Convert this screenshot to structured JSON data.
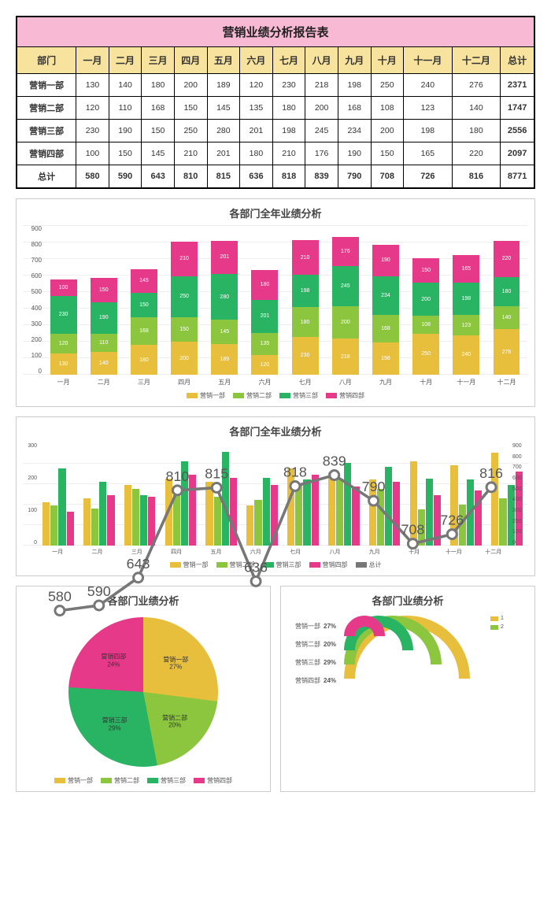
{
  "table": {
    "title": "营销业绩分析报告表",
    "dept_header": "部门",
    "months": [
      "一月",
      "二月",
      "三月",
      "四月",
      "五月",
      "六月",
      "七月",
      "八月",
      "九月",
      "十月",
      "十一月",
      "十二月"
    ],
    "total_col_header": "总计",
    "rows": [
      {
        "dept": "营销一部",
        "vals": [
          130,
          140,
          180,
          200,
          189,
          120,
          230,
          218,
          198,
          250,
          240,
          276
        ],
        "total": 2371
      },
      {
        "dept": "营销二部",
        "vals": [
          120,
          110,
          168,
          150,
          145,
          135,
          180,
          200,
          168,
          108,
          123,
          140
        ],
        "total": 1747
      },
      {
        "dept": "营销三部",
        "vals": [
          230,
          190,
          150,
          250,
          280,
          201,
          198,
          245,
          234,
          200,
          198,
          180
        ],
        "total": 2556
      },
      {
        "dept": "营销四部",
        "vals": [
          100,
          150,
          145,
          210,
          201,
          180,
          210,
          176,
          190,
          150,
          165,
          220
        ],
        "total": 2097
      }
    ],
    "footer_label": "总计",
    "footer_vals": [
      580,
      590,
      643,
      810,
      815,
      636,
      818,
      839,
      790,
      708,
      726,
      816
    ],
    "footer_total": 8771
  },
  "colors": {
    "s1": "#e8be3d",
    "s2": "#8cc63f",
    "s3": "#28b463",
    "s4": "#e6398a",
    "tot_line": "#777777",
    "title_bg": "#f7b9d3",
    "header_bg": "#f7e29e",
    "grid": "#eeeeee",
    "panel_border": "#cccccc"
  },
  "chart_stacked": {
    "type": "stacked-bar",
    "title": "各部门全年业绩分析",
    "categories": [
      "一月",
      "二月",
      "三月",
      "四月",
      "五月",
      "六月",
      "七月",
      "八月",
      "九月",
      "十月",
      "十一月",
      "十二月"
    ],
    "series": [
      {
        "name": "营销一部",
        "color_key": "s1",
        "data": [
          130,
          140,
          180,
          200,
          189,
          120,
          230,
          218,
          198,
          250,
          240,
          276
        ]
      },
      {
        "name": "营销二部",
        "color_key": "s2",
        "data": [
          120,
          110,
          168,
          150,
          145,
          135,
          180,
          200,
          168,
          108,
          123,
          140
        ]
      },
      {
        "name": "营销三部",
        "color_key": "s3",
        "data": [
          230,
          190,
          150,
          250,
          280,
          201,
          198,
          245,
          234,
          200,
          198,
          180
        ]
      },
      {
        "name": "营销四部",
        "color_key": "s4",
        "data": [
          100,
          150,
          145,
          210,
          201,
          180,
          210,
          176,
          190,
          150,
          165,
          220
        ]
      }
    ],
    "ylim": [
      0,
      900
    ],
    "ytick_step": 100,
    "label_fontsize": 7
  },
  "chart_grouped": {
    "type": "grouped-bar-with-line",
    "title": "各部门全年业绩分析",
    "categories": [
      "一月",
      "二月",
      "三月",
      "四月",
      "五月",
      "六月",
      "七月",
      "八月",
      "九月",
      "十月",
      "十一月",
      "十二月"
    ],
    "bar_series": [
      {
        "name": "营销一部",
        "color_key": "s1",
        "data": [
          130,
          140,
          180,
          200,
          189,
          120,
          230,
          218,
          198,
          250,
          240,
          276
        ]
      },
      {
        "name": "营销二部",
        "color_key": "s2",
        "data": [
          120,
          110,
          168,
          150,
          145,
          135,
          180,
          200,
          168,
          108,
          123,
          140
        ]
      },
      {
        "name": "营销三部",
        "color_key": "s3",
        "data": [
          230,
          190,
          150,
          250,
          280,
          201,
          198,
          245,
          234,
          200,
          198,
          180
        ]
      },
      {
        "name": "营销四部",
        "color_key": "s4",
        "data": [
          100,
          150,
          145,
          210,
          201,
          180,
          210,
          176,
          190,
          150,
          165,
          220
        ]
      }
    ],
    "line_series": {
      "name": "总计",
      "color_key": "tot_line",
      "data": [
        580,
        590,
        643,
        810,
        815,
        636,
        818,
        839,
        790,
        708,
        726,
        816
      ]
    },
    "ylim_left": [
      0,
      300
    ],
    "ytick_left_step": 100,
    "ylim_right": [
      0,
      900
    ],
    "ytick_right_step": 100
  },
  "chart_pie": {
    "type": "pie",
    "title": "各部门业绩分析",
    "slices": [
      {
        "name": "营销一部",
        "pct": 27,
        "color_key": "s1"
      },
      {
        "name": "营销二部",
        "pct": 20,
        "color_key": "s2"
      },
      {
        "name": "营销三部",
        "pct": 29,
        "color_key": "s3"
      },
      {
        "name": "营销四部",
        "pct": 24,
        "color_key": "s4"
      }
    ],
    "legend": [
      "营销一部",
      "营销二部",
      "营销三部",
      "营销四部"
    ]
  },
  "chart_radial": {
    "type": "radial-bar",
    "title": "各部门业绩分析",
    "items": [
      {
        "name": "营销一部",
        "pct": 27,
        "color_key": "s1"
      },
      {
        "name": "营销二部",
        "pct": 20,
        "color_key": "s2"
      },
      {
        "name": "营销三部",
        "pct": 29,
        "color_key": "s3"
      },
      {
        "name": "营销四部",
        "pct": 24,
        "color_key": "s4"
      }
    ],
    "legend_nums": [
      "1",
      "2"
    ]
  }
}
